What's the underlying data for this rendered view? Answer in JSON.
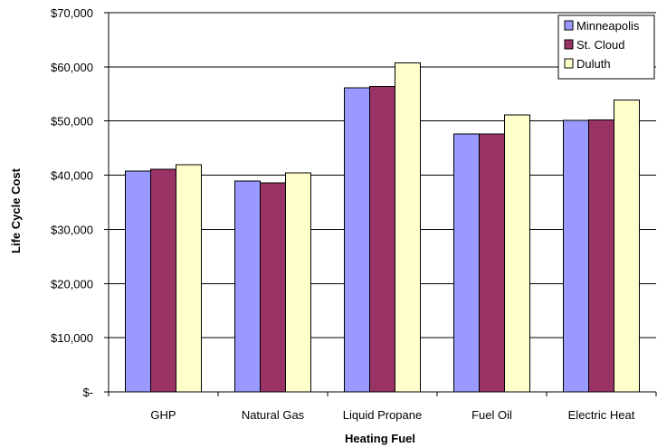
{
  "chart_data": {
    "type": "bar",
    "title": "",
    "xlabel": "Heating Fuel",
    "ylabel": "Life Cycle Cost",
    "categories": [
      "GHP",
      "Natural Gas",
      "Liquid Propane",
      "Fuel Oil",
      "Electric Heat"
    ],
    "series": [
      {
        "name": "Minneapolis",
        "color": "#9999ff",
        "values": [
          40800,
          38900,
          56100,
          47600,
          50100
        ]
      },
      {
        "name": "St. Cloud",
        "color": "#993366",
        "values": [
          41100,
          38600,
          56400,
          47600,
          50200
        ]
      },
      {
        "name": "Duluth",
        "color": "#ffffcc",
        "values": [
          41900,
          40400,
          60700,
          51100,
          53900
        ]
      }
    ],
    "ylim": [
      0,
      70000
    ],
    "ytick_values": [
      0,
      10000,
      20000,
      30000,
      40000,
      50000,
      60000,
      70000
    ],
    "ytick_labels": [
      "$-",
      "$10,000",
      "$20,000",
      "$30,000",
      "$40,000",
      "$50,000",
      "$60,000",
      "$70,000"
    ],
    "grid": true,
    "legend_position": "top-right"
  }
}
